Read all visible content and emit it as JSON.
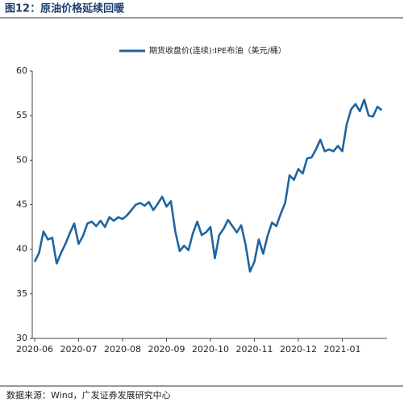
{
  "title": "图12：原油价格延续回暖",
  "source": "数据来源：Wind，广发证券发展研究中心",
  "chart_data": {
    "type": "line",
    "categories": [
      "2020-06",
      null,
      null,
      null,
      null,
      null,
      null,
      null,
      null,
      null,
      "2020-07",
      null,
      null,
      null,
      null,
      null,
      null,
      null,
      null,
      null,
      "2020-08",
      null,
      null,
      null,
      null,
      null,
      null,
      null,
      null,
      null,
      "2020-09",
      null,
      null,
      null,
      null,
      null,
      null,
      null,
      null,
      null,
      "2020-10",
      null,
      null,
      null,
      null,
      null,
      null,
      null,
      null,
      null,
      "2020-11",
      null,
      null,
      null,
      null,
      null,
      null,
      null,
      null,
      null,
      "2020-12",
      null,
      null,
      null,
      null,
      null,
      null,
      null,
      null,
      null,
      "2021-01",
      null,
      null,
      null,
      null,
      null,
      null,
      null,
      null,
      null
    ],
    "series": [
      {
        "name": "期货收盘价(连续):IPE布油（美元/桶）",
        "color": "#1f64a0",
        "values": [
          38.6,
          39.6,
          42.0,
          41.1,
          41.3,
          38.4,
          39.6,
          40.6,
          41.8,
          42.9,
          40.6,
          41.5,
          42.9,
          43.1,
          42.6,
          43.2,
          42.5,
          43.6,
          43.2,
          43.6,
          43.4,
          43.8,
          44.4,
          45.0,
          45.2,
          44.9,
          45.3,
          44.4,
          45.1,
          45.9,
          44.8,
          45.4,
          42.0,
          39.8,
          40.4,
          39.9,
          41.8,
          43.1,
          41.6,
          41.9,
          42.5,
          39.0,
          41.6,
          42.3,
          43.3,
          42.6,
          41.9,
          42.7,
          40.5,
          37.5,
          38.6,
          41.1,
          39.5,
          41.5,
          43.0,
          42.6,
          44.0,
          45.2,
          48.3,
          47.8,
          49.0,
          48.5,
          50.2,
          50.3,
          51.2,
          52.3,
          51.0,
          51.2,
          51.0,
          51.6,
          51.0,
          54.0,
          55.7,
          56.3,
          55.5,
          56.8,
          55.0,
          54.9,
          56.0,
          55.6
        ]
      }
    ],
    "ylim": [
      30,
      60
    ],
    "yticks": [
      30,
      35,
      40,
      45,
      50,
      55,
      60
    ],
    "grid": false
  }
}
